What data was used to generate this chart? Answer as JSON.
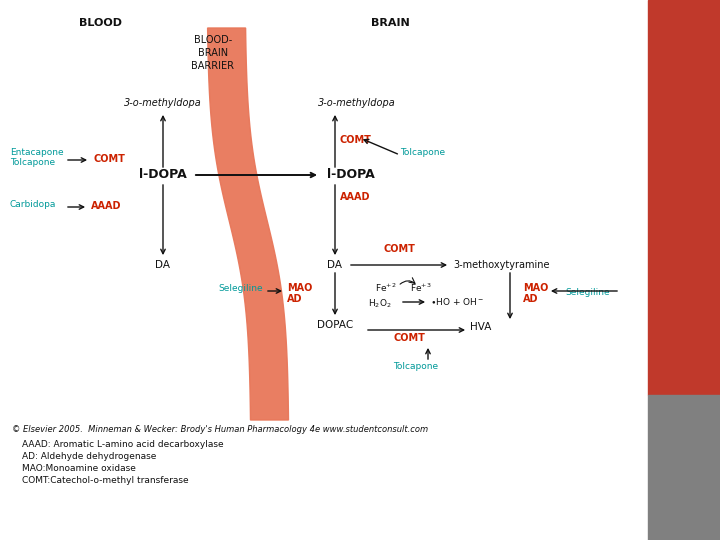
{
  "background_color": "#ffffff",
  "right_panel_color": "#c0392b",
  "right_panel2_color": "#7f8c8d",
  "barrier_color": "#e8775a",
  "blood_label": "BLOOD",
  "brain_label": "BRAIN",
  "bbb_label": "BLOOD-\nBRAIN\nBARRIER",
  "copyright": "© Elsevier 2005.  Minneman & Wecker: Brody's Human Pharmacology 4e www.studentconsult.com",
  "footnotes": [
    "AAAD: Aromatic L-amino acid decarboxylase",
    "AD: Aldehyde dehydrogenase",
    "MAO:Monoamine oxidase",
    "COMT:Catechol-o-methyl transferase"
  ],
  "teal": "#009999",
  "red": "#cc2200",
  "black": "#111111"
}
